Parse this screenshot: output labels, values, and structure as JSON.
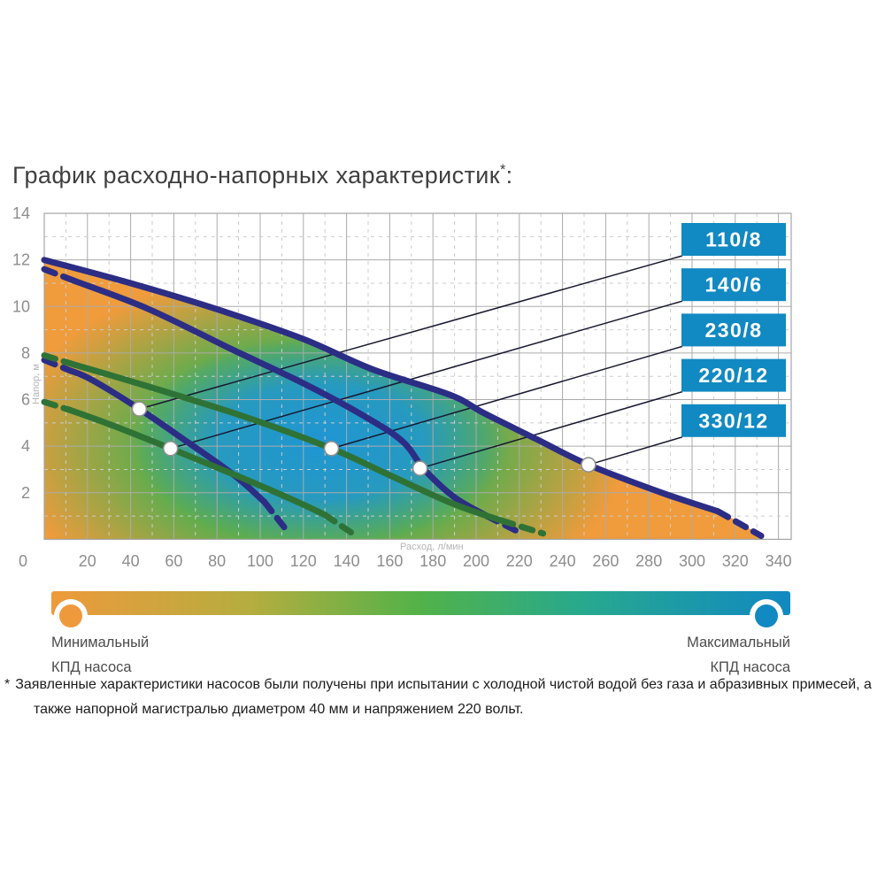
{
  "page": {
    "title": {
      "text": "График расходно-напорных характеристик",
      "sup": "*",
      "colon": ":"
    }
  },
  "chart_data": {
    "type": "line",
    "title": "График расходно-напорных характеристик*:",
    "xlabel": "Расход, л/мин",
    "ylabel": "Напор, м",
    "xlim": [
      0,
      346
    ],
    "ylim": [
      0,
      14
    ],
    "grid": "major solid + minor dashed",
    "x_ticks": [
      0,
      20,
      40,
      60,
      80,
      100,
      120,
      140,
      160,
      180,
      200,
      220,
      240,
      260,
      280,
      300,
      320,
      340
    ],
    "y_ticks": [
      14,
      12,
      10,
      8,
      6,
      4,
      2
    ],
    "origin_label": "0",
    "label_box_color": "#1189c2",
    "curve_colors": {
      "navy": "#2c2d85",
      "green": "#2f7235"
    },
    "heat": {
      "low": "#f09b3c",
      "mid": "#45b051",
      "high": "#1f96d3"
    },
    "callout_order": [
      "110/8",
      "140/6",
      "230/8",
      "220/12",
      "330/12"
    ],
    "series": [
      {
        "name": "220/12",
        "color": "#2c2d85",
        "dashed_start": true,
        "envelope": false,
        "marker": {
          "flow": 174,
          "head": 3.05
        },
        "points": [
          [
            0,
            11.6
          ],
          [
            14,
            11.1
          ],
          [
            48,
            9.9
          ],
          [
            86,
            8.2
          ],
          [
            120,
            6.7
          ],
          [
            148,
            5.3
          ],
          [
            166,
            4.2
          ],
          [
            176,
            3.0
          ],
          [
            190,
            1.8
          ],
          [
            205,
            1.0
          ],
          [
            220,
            0.3
          ]
        ]
      },
      {
        "name": "110/8",
        "color": "#2c2d85",
        "dashed_start": true,
        "envelope": false,
        "marker": {
          "flow": 44,
          "head": 5.6
        },
        "points": [
          [
            0,
            7.7
          ],
          [
            12,
            7.25
          ],
          [
            22,
            6.85
          ],
          [
            44,
            5.6
          ],
          [
            66,
            4.2
          ],
          [
            88,
            2.75
          ],
          [
            102,
            1.6
          ],
          [
            113,
            0.3
          ]
        ]
      },
      {
        "name": "230/8",
        "color": "#2f7235",
        "dashed_start": true,
        "envelope": false,
        "marker": {
          "flow": 133,
          "head": 3.9
        },
        "points": [
          [
            0,
            7.9
          ],
          [
            14,
            7.5
          ],
          [
            45,
            6.65
          ],
          [
            90,
            5.35
          ],
          [
            133,
            3.9
          ],
          [
            160,
            2.75
          ],
          [
            190,
            1.5
          ],
          [
            212,
            0.8
          ],
          [
            231,
            0.25
          ]
        ]
      },
      {
        "name": "140/6",
        "color": "#2f7235",
        "dashed_start": true,
        "envelope": false,
        "marker": {
          "flow": 58.5,
          "head": 3.9
        },
        "points": [
          [
            0,
            5.9
          ],
          [
            12,
            5.55
          ],
          [
            30,
            4.95
          ],
          [
            58.5,
            3.9
          ],
          [
            90,
            2.7
          ],
          [
            115,
            1.7
          ],
          [
            130,
            1.05
          ],
          [
            142,
            0.3
          ]
        ]
      },
      {
        "name": "330/12",
        "color": "#2c2d85",
        "dashed_start": false,
        "envelope": true,
        "marker": {
          "flow": 252,
          "head": 3.2
        },
        "points": [
          [
            0,
            12
          ],
          [
            40,
            11.0
          ],
          [
            81,
            9.85
          ],
          [
            120,
            8.6
          ],
          [
            152,
            7.3
          ],
          [
            188,
            6.2
          ],
          [
            204,
            5.4
          ],
          [
            228,
            4.3
          ],
          [
            252,
            3.2
          ],
          [
            286,
            2.0
          ],
          [
            312,
            1.2
          ],
          [
            332,
            0.15
          ]
        ]
      }
    ]
  },
  "legend": {
    "gradient": [
      "#ee9a3c",
      "#b5ad3f",
      "#52b249",
      "#27a98e",
      "#1189c2"
    ],
    "min_label_line1": "Минимальный",
    "min_label_line2": "КПД насоса",
    "max_label_line1": "Максимальный",
    "max_label_line2": "КПД насоса"
  },
  "footnote": {
    "marker": "*",
    "line1": "Заявленные характеристики насосов были получены при испытании с холодной чистой водой без газа и абразивных примесей, а",
    "line2": "также напорной магистралью диаметром 40 мм и напряжением 220 вольт."
  }
}
